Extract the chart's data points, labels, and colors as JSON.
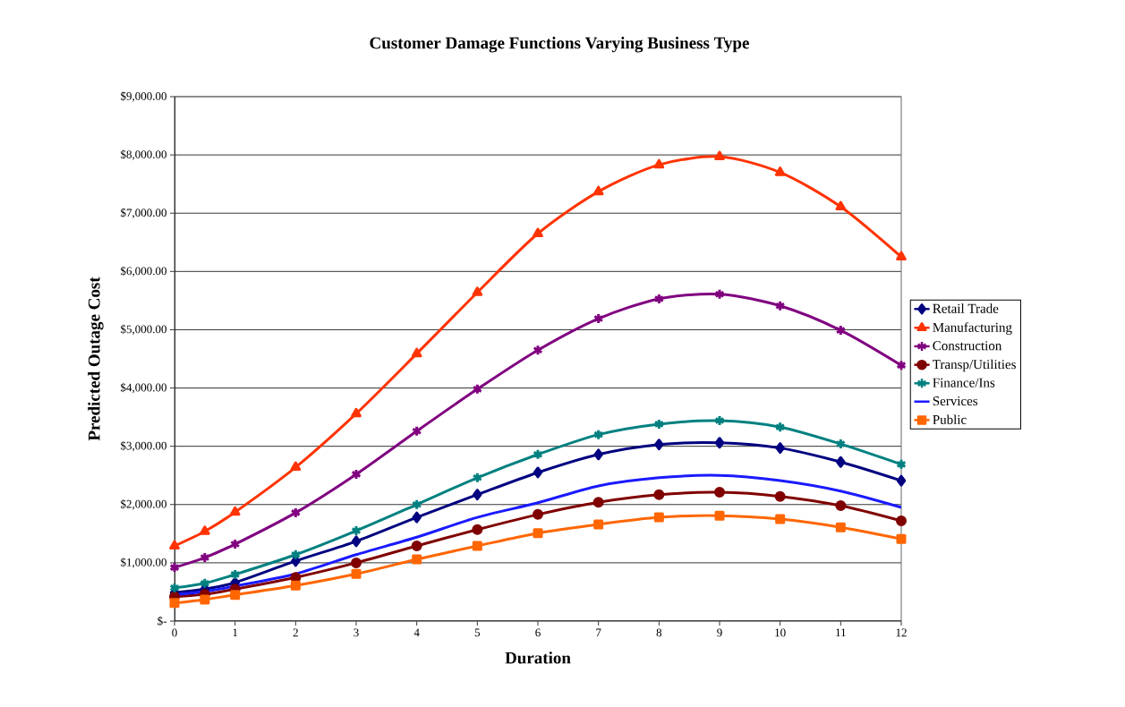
{
  "chart_data": {
    "type": "line",
    "title": "Customer Damage Functions Varying Business Type",
    "xlabel": "Duration",
    "ylabel": "Predicted Outage Cost",
    "x": [
      0,
      0.5,
      1,
      2,
      3,
      4,
      5,
      6,
      7,
      8,
      9,
      10,
      11,
      12
    ],
    "series": [
      {
        "name": "Retail Trade",
        "color": "#000080",
        "marker": "diamond",
        "values": [
          490,
          550,
          660,
          1030,
          1370,
          1780,
          2170,
          2550,
          2860,
          3030,
          3060,
          2970,
          2730,
          2410
        ]
      },
      {
        "name": "Manufacturing",
        "color": "#ff3300",
        "marker": "triangle",
        "values": [
          1290,
          1540,
          1870,
          2640,
          3560,
          4590,
          5640,
          6650,
          7370,
          7830,
          7970,
          7700,
          7110,
          6250
        ]
      },
      {
        "name": "Construction",
        "color": "#800080",
        "marker": "cross",
        "values": [
          920,
          1090,
          1320,
          1860,
          2520,
          3260,
          3980,
          4650,
          5190,
          5530,
          5610,
          5410,
          4990,
          4390
        ]
      },
      {
        "name": "Transp/Utilities",
        "color": "#800000",
        "marker": "circle",
        "values": [
          420,
          460,
          550,
          750,
          1000,
          1290,
          1570,
          1830,
          2040,
          2170,
          2210,
          2140,
          1980,
          1720
        ]
      },
      {
        "name": "Finance/Ins",
        "color": "#008080",
        "marker": "cross",
        "values": [
          570,
          650,
          800,
          1140,
          1550,
          2000,
          2460,
          2860,
          3200,
          3380,
          3440,
          3330,
          3040,
          2690
        ]
      },
      {
        "name": "Services",
        "color": "#1a1aff",
        "marker": "none",
        "values": [
          450,
          510,
          600,
          810,
          1140,
          1440,
          1780,
          2030,
          2320,
          2460,
          2500,
          2410,
          2230,
          1950
        ]
      },
      {
        "name": "Public",
        "color": "#ff6600",
        "marker": "square",
        "values": [
          310,
          370,
          450,
          610,
          810,
          1060,
          1290,
          1510,
          1660,
          1780,
          1810,
          1750,
          1610,
          1410
        ]
      }
    ],
    "xlim": [
      0,
      12
    ],
    "xticks": [
      0,
      1,
      2,
      3,
      4,
      5,
      6,
      7,
      8,
      9,
      10,
      11,
      12
    ],
    "ylim": [
      0,
      9000
    ],
    "yticks": [
      {
        "value": 0,
        "label": "$-"
      },
      {
        "value": 1000,
        "label": "$1,000.00"
      },
      {
        "value": 2000,
        "label": "$2,000.00"
      },
      {
        "value": 3000,
        "label": "$3,000.00"
      },
      {
        "value": 4000,
        "label": "$4,000.00"
      },
      {
        "value": 5000,
        "label": "$5,000.00"
      },
      {
        "value": 6000,
        "label": "$6,000.00"
      },
      {
        "value": 7000,
        "label": "$7,000.00"
      },
      {
        "value": 8000,
        "label": "$8,000.00"
      },
      {
        "value": 9000,
        "label": "$9,000.00"
      }
    ],
    "grid": "y",
    "legend": "right",
    "line_style": "solid"
  }
}
